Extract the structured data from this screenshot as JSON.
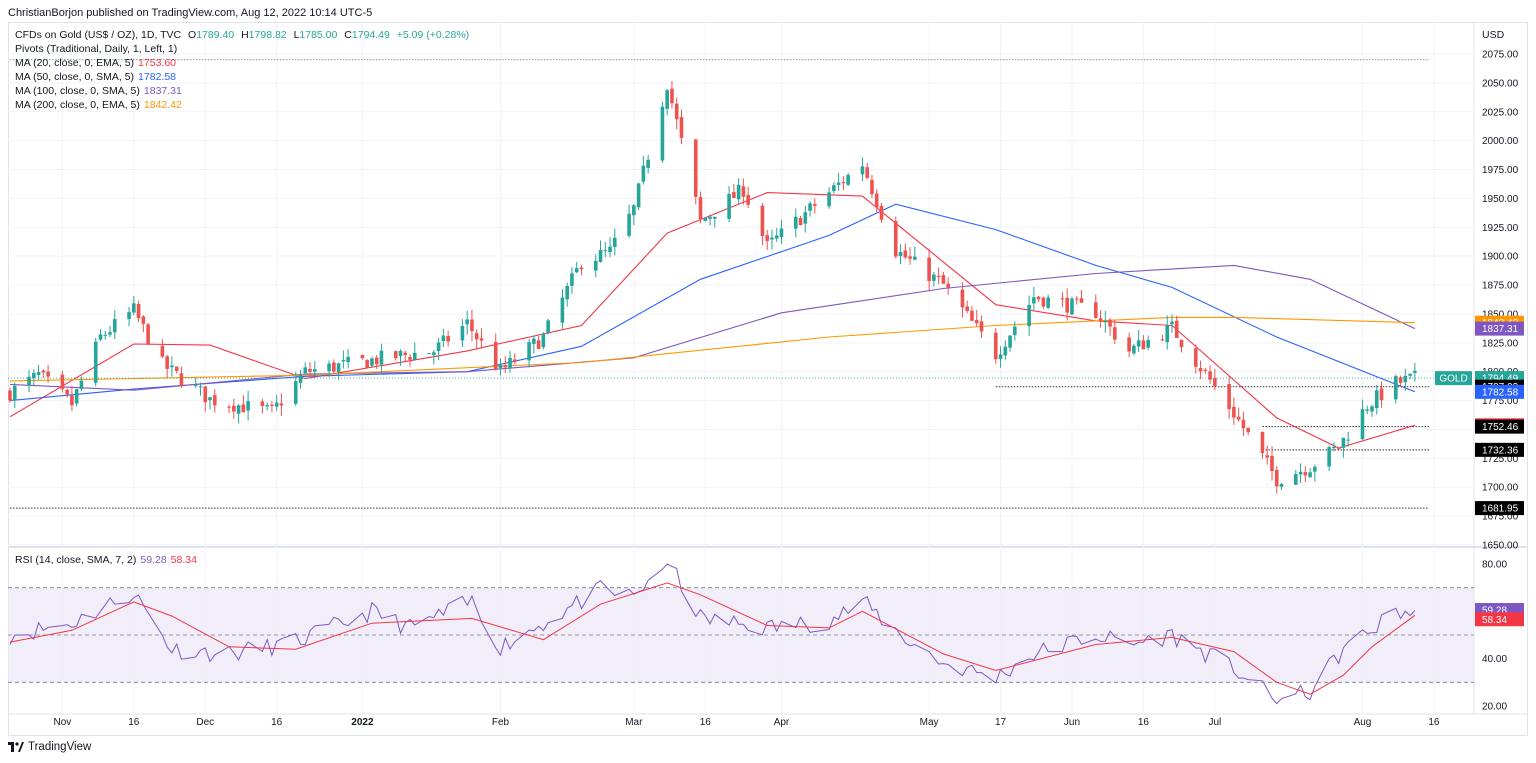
{
  "publisher": "ChristianBorjon published on TradingView.com, Aug 12, 2022 10:14 UTC-5",
  "footer_brand": "TradingView",
  "currency": "USD",
  "legend": {
    "symbol": "CFDs on Gold (US$ / OZ), 1D, TVC",
    "o_label": "O",
    "o_val": "1789.40",
    "h_label": "H",
    "h_val": "1798.82",
    "l_label": "L",
    "l_val": "1785.00",
    "c_label": "C",
    "c_val": "1794.49",
    "change": "+5.09 (+0.28%)",
    "pivots": "Pivots (Traditional, Daily, 1, Left, 1)",
    "ma20_label": "MA (20, close, 0, EMA, 5)",
    "ma20_val": "1753.60",
    "ma50_label": "MA (50, close, 0, SMA, 5)",
    "ma50_val": "1782.58",
    "ma100_label": "MA (100, close, 0, SMA, 5)",
    "ma100_val": "1837.31",
    "ma200_label": "MA (200, close, 0, EMA, 5)",
    "ma200_val": "1842.42",
    "rsi_label": "RSI (14, close, SMA, 7, 2)",
    "rsi_val": "59.28",
    "rsi_ma_val": "58.34"
  },
  "colors": {
    "up": "#26a69a",
    "down": "#ef5350",
    "ma20": "#f23645",
    "ma50": "#2962ff",
    "ma100": "#7e57c2",
    "ma200": "#ff9800",
    "rsi": "#7e57c2",
    "rsi_ma": "#f23645",
    "rsi_band": "#ede7f6"
  },
  "chart_data": [
    {
      "type": "candlestick",
      "title": "CFDs on Gold (US$ / OZ), 1D, TVC",
      "ylim": [
        1650,
        2075
      ],
      "y_ticks": [
        "2075.00",
        "2050.00",
        "2025.00",
        "2000.00",
        "1975.00",
        "1950.00",
        "1925.00",
        "1900.00",
        "1875.00",
        "1850.00",
        "1825.00",
        "1800.00",
        "1775.00",
        "1750.00",
        "1725.00",
        "1700.00",
        "1675.00",
        "1650.00"
      ],
      "x_ticks": [
        "Nov",
        "16",
        "Dec",
        "16",
        "2022",
        "Feb",
        "Mar",
        "16",
        "Apr",
        "May",
        "17",
        "Jun",
        "16",
        "Jul",
        "Aug",
        "16"
      ],
      "x_dates": [
        "2021-11-01",
        "2021-11-16",
        "2021-12-01",
        "2021-12-16",
        "2022-01-03",
        "2022-02-01",
        "2022-03-01",
        "2022-03-16",
        "2022-04-01",
        "2022-05-02",
        "2022-05-17",
        "2022-06-01",
        "2022-06-16",
        "2022-07-01",
        "2022-08-01",
        "2022-08-16"
      ],
      "price_path": [
        [
          "2021-10-21",
          1782
        ],
        [
          "2021-10-27",
          1797
        ],
        [
          "2021-11-03",
          1772
        ],
        [
          "2021-11-09",
          1830
        ],
        [
          "2021-11-16",
          1853
        ],
        [
          "2021-11-22",
          1806
        ],
        [
          "2021-12-02",
          1776
        ],
        [
          "2021-12-15",
          1765
        ],
        [
          "2021-12-22",
          1800
        ],
        [
          "2022-01-05",
          1810
        ],
        [
          "2022-01-18",
          1818
        ],
        [
          "2022-01-25",
          1842
        ],
        [
          "2022-02-01",
          1800
        ],
        [
          "2022-02-10",
          1830
        ],
        [
          "2022-02-18",
          1895
        ],
        [
          "2022-02-24",
          1904
        ],
        [
          "2022-03-01",
          1941
        ],
        [
          "2022-03-08",
          2050
        ],
        [
          "2022-03-15",
          1930
        ],
        [
          "2022-03-24",
          1958
        ],
        [
          "2022-03-29",
          1908
        ],
        [
          "2022-04-11",
          1955
        ],
        [
          "2022-04-18",
          1980
        ],
        [
          "2022-04-25",
          1905
        ],
        [
          "2022-05-05",
          1875
        ],
        [
          "2022-05-16",
          1815
        ],
        [
          "2022-05-24",
          1865
        ],
        [
          "2022-06-06",
          1852
        ],
        [
          "2022-06-13",
          1818
        ],
        [
          "2022-06-22",
          1838
        ],
        [
          "2022-07-05",
          1764
        ],
        [
          "2022-07-14",
          1707
        ],
        [
          "2022-07-21",
          1718
        ],
        [
          "2022-07-27",
          1735
        ],
        [
          "2022-08-02",
          1771
        ],
        [
          "2022-08-08",
          1790
        ],
        [
          "2022-08-12",
          1794.49
        ]
      ],
      "moving_averages": [
        {
          "name": "MA (20, close, 0, EMA, 5)",
          "value": 1753.6,
          "path": [
            [
              "2021-10-21",
              1761
            ],
            [
              "2021-11-16",
              1824
            ],
            [
              "2021-12-02",
              1823
            ],
            [
              "2021-12-22",
              1794
            ],
            [
              "2022-01-25",
              1818
            ],
            [
              "2022-02-18",
              1840
            ],
            [
              "2022-03-08",
              1920
            ],
            [
              "2022-03-29",
              1955
            ],
            [
              "2022-04-18",
              1952
            ],
            [
              "2022-05-16",
              1858
            ],
            [
              "2022-06-06",
              1844
            ],
            [
              "2022-06-22",
              1840
            ],
            [
              "2022-07-14",
              1760
            ],
            [
              "2022-07-27",
              1734
            ],
            [
              "2022-08-12",
              1753.6
            ]
          ]
        },
        {
          "name": "MA (50, close, 0, SMA, 5)",
          "value": 1782.58,
          "path": [
            [
              "2021-10-21",
              1775
            ],
            [
              "2021-11-16",
              1785
            ],
            [
              "2021-12-22",
              1796
            ],
            [
              "2022-01-25",
              1800
            ],
            [
              "2022-02-18",
              1822
            ],
            [
              "2022-03-15",
              1880
            ],
            [
              "2022-04-11",
              1918
            ],
            [
              "2022-04-25",
              1945
            ],
            [
              "2022-05-16",
              1923
            ],
            [
              "2022-06-06",
              1892
            ],
            [
              "2022-06-22",
              1873
            ],
            [
              "2022-07-14",
              1830
            ],
            [
              "2022-08-12",
              1782.58
            ]
          ]
        },
        {
          "name": "MA (100, close, 0, SMA, 5)",
          "value": 1837.31,
          "path": [
            [
              "2021-10-21",
              1789
            ],
            [
              "2021-11-16",
              1784
            ],
            [
              "2021-12-22",
              1798
            ],
            [
              "2022-01-25",
              1800
            ],
            [
              "2022-03-01",
              1812
            ],
            [
              "2022-04-01",
              1851
            ],
            [
              "2022-05-05",
              1872
            ],
            [
              "2022-06-06",
              1885
            ],
            [
              "2022-07-05",
              1892
            ],
            [
              "2022-07-21",
              1880
            ],
            [
              "2022-08-12",
              1837.31
            ]
          ]
        },
        {
          "name": "MA (200, close, 0, EMA, 5)",
          "value": 1842.42,
          "path": [
            [
              "2021-10-21",
              1792
            ],
            [
              "2021-12-22",
              1797
            ],
            [
              "2022-02-18",
              1808
            ],
            [
              "2022-04-11",
              1830
            ],
            [
              "2022-05-16",
              1840
            ],
            [
              "2022-06-22",
              1847
            ],
            [
              "2022-07-05",
              1847
            ],
            [
              "2022-08-12",
              1842.42
            ]
          ]
        }
      ],
      "pivot_levels": [
        {
          "value": 2070,
          "from": "2021-10-21",
          "to": "2022-08-15"
        },
        {
          "value": 1787.03,
          "from": "2022-05-16",
          "to": "2022-08-15"
        },
        {
          "value": 1752.46,
          "from": "2022-07-11",
          "to": "2022-08-15"
        },
        {
          "value": 1732.36,
          "from": "2022-07-11",
          "to": "2022-08-15"
        },
        {
          "value": 1681.95,
          "from": "2021-10-21",
          "to": "2022-08-15"
        }
      ],
      "price_tags": [
        {
          "label": "GOLD",
          "value": "1794.49",
          "y": 1794.49,
          "color": "#26a69a"
        },
        {
          "value": "1787.03",
          "y": 1787.03,
          "color": "#000000"
        },
        {
          "value": "1782.58",
          "y": 1782.58,
          "color": "#2962ff"
        },
        {
          "value": "1753.60",
          "y": 1753.6,
          "color": "#f23645"
        },
        {
          "value": "1752.46",
          "y": 1752.46,
          "color": "#000000"
        },
        {
          "value": "1732.36",
          "y": 1732.36,
          "color": "#000000"
        },
        {
          "value": "1681.95",
          "y": 1681.95,
          "color": "#000000"
        },
        {
          "value": "1842.42",
          "y": 1842.42,
          "color": "#ff9800"
        },
        {
          "value": "1837.31",
          "y": 1837.31,
          "color": "#7e57c2"
        }
      ]
    },
    {
      "type": "line",
      "title": "RSI (14, close, SMA, 7, 2)",
      "ylim": [
        20,
        80
      ],
      "y_ticks": [
        "80.00",
        "40.00",
        "20.00"
      ],
      "bands": [
        70,
        50,
        30
      ],
      "series": [
        {
          "name": "RSI",
          "value": 59.28,
          "path": [
            [
              "2021-10-21",
              50
            ],
            [
              "2021-11-03",
              55
            ],
            [
              "2021-11-12",
              64
            ],
            [
              "2021-11-16",
              68
            ],
            [
              "2021-11-24",
              44
            ],
            [
              "2021-12-06",
              42
            ],
            [
              "2021-12-20",
              47
            ],
            [
              "2022-01-05",
              60
            ],
            [
              "2022-01-13",
              53
            ],
            [
              "2022-01-26",
              64
            ],
            [
              "2022-02-01",
              45
            ],
            [
              "2022-02-10",
              55
            ],
            [
              "2022-02-22",
              69
            ],
            [
              "2022-03-01",
              66
            ],
            [
              "2022-03-08",
              82
            ],
            [
              "2022-03-15",
              57
            ],
            [
              "2022-03-29",
              53
            ],
            [
              "2022-04-11",
              56
            ],
            [
              "2022-04-18",
              64
            ],
            [
              "2022-04-26",
              50
            ],
            [
              "2022-05-05",
              38
            ],
            [
              "2022-05-16",
              32
            ],
            [
              "2022-05-24",
              42
            ],
            [
              "2022-06-06",
              50
            ],
            [
              "2022-06-13",
              46
            ],
            [
              "2022-06-22",
              50
            ],
            [
              "2022-07-05",
              36
            ],
            [
              "2022-07-14",
              22
            ],
            [
              "2022-07-21",
              26
            ],
            [
              "2022-07-28",
              44
            ],
            [
              "2022-08-03",
              52
            ],
            [
              "2022-08-08",
              60
            ],
            [
              "2022-08-12",
              59.28
            ]
          ]
        },
        {
          "name": "RSI MA",
          "value": 58.34,
          "path": [
            [
              "2021-10-21",
              47
            ],
            [
              "2021-11-03",
              52
            ],
            [
              "2021-11-16",
              64
            ],
            [
              "2021-11-24",
              58
            ],
            [
              "2021-12-06",
              45
            ],
            [
              "2021-12-20",
              44
            ],
            [
              "2022-01-05",
              55
            ],
            [
              "2022-01-26",
              57
            ],
            [
              "2022-02-10",
              48
            ],
            [
              "2022-02-22",
              63
            ],
            [
              "2022-03-08",
              72
            ],
            [
              "2022-03-15",
              67
            ],
            [
              "2022-03-29",
              54
            ],
            [
              "2022-04-11",
              53
            ],
            [
              "2022-04-18",
              60
            ],
            [
              "2022-05-05",
              42
            ],
            [
              "2022-05-16",
              35
            ],
            [
              "2022-06-06",
              46
            ],
            [
              "2022-06-22",
              49
            ],
            [
              "2022-07-05",
              43
            ],
            [
              "2022-07-14",
              30
            ],
            [
              "2022-07-21",
              25
            ],
            [
              "2022-07-28",
              33
            ],
            [
              "2022-08-03",
              45
            ],
            [
              "2022-08-12",
              58.34
            ]
          ]
        }
      ]
    }
  ]
}
